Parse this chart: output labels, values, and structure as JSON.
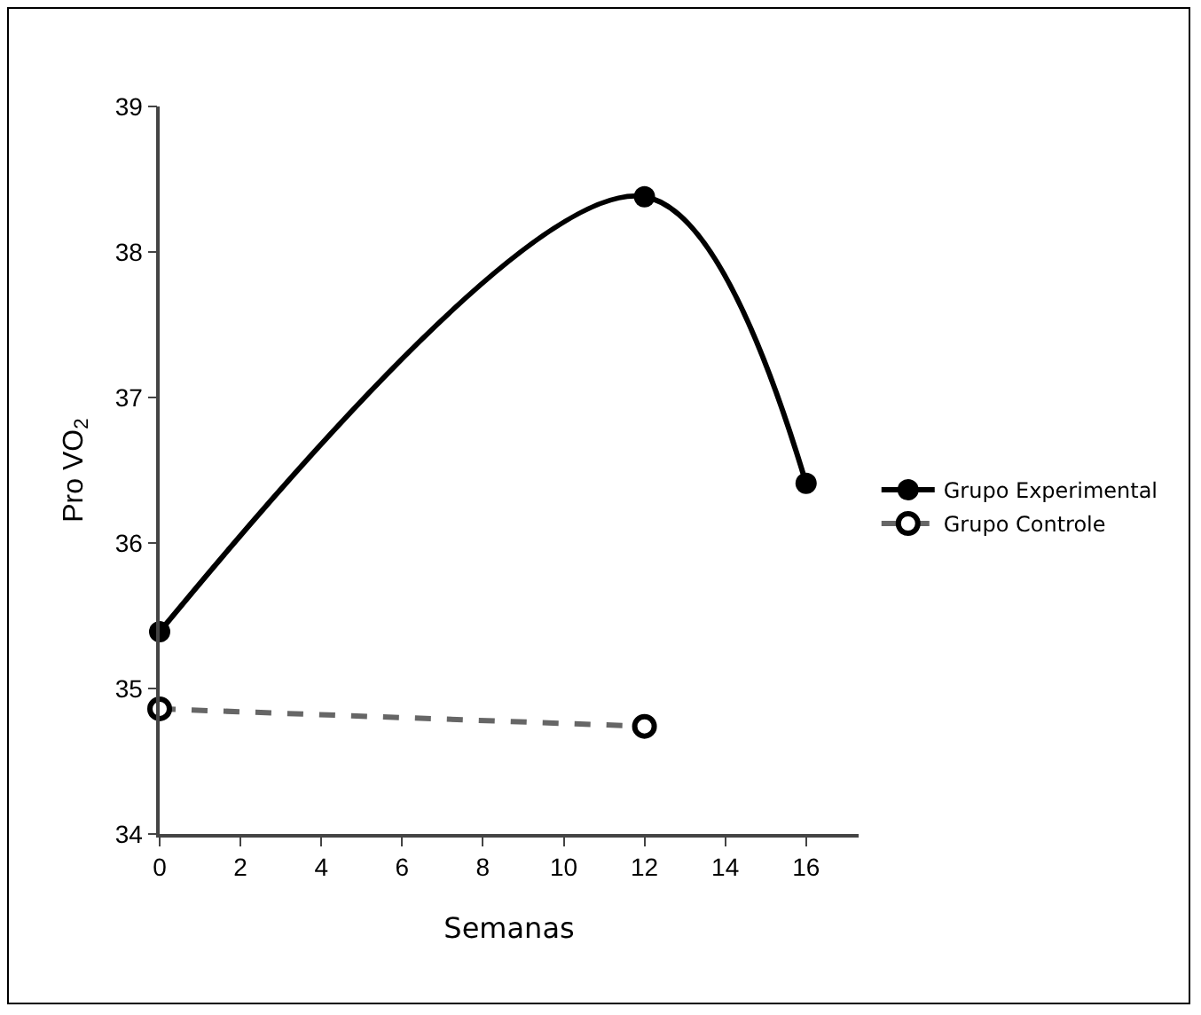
{
  "chart_data": {
    "type": "line",
    "xlabel": "Semanas",
    "ylabel": "Pro VO$_{2}$",
    "xlim": [
      0,
      17.3
    ],
    "xticks": [
      0,
      2,
      4,
      6,
      8,
      10,
      12,
      14,
      16
    ],
    "ylim": [
      34,
      39
    ],
    "yticks": [
      34,
      35,
      36,
      37,
      38,
      39
    ],
    "grid": false,
    "legend": "right",
    "marker": "circle",
    "series": [
      {
        "name": "Grupo Experimental",
        "color": "#000000",
        "x": [
          0,
          12,
          16
        ],
        "values": [
          35.39,
          38.38,
          36.41
        ],
        "line_style": "solid"
      },
      {
        "name": "Grupo Controle",
        "color": "#666666",
        "x": [
          0,
          12
        ],
        "values": [
          34.86,
          34.74
        ],
        "line_style": "dashed"
      }
    ]
  }
}
